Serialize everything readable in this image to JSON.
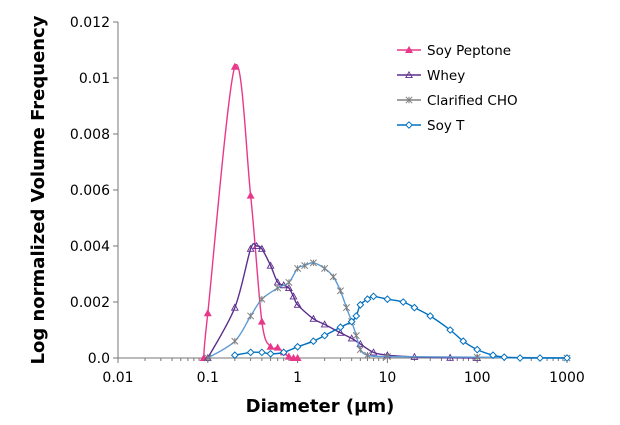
{
  "chart_data": {
    "type": "line",
    "xlabel": "Diameter (µm)",
    "ylabel": "Log normalized Volume Frequency",
    "xscale": "log",
    "xlim": [
      0.01,
      1000
    ],
    "ylim": [
      0,
      0.012
    ],
    "xticks": [
      "0.01",
      "0.1",
      "1",
      "10",
      "100",
      "1000"
    ],
    "yticks": [
      "0.0",
      "0.002",
      "0.004",
      "0.006",
      "0.008",
      "0.01",
      "0.012"
    ],
    "grid": false,
    "legend_position": "top-right",
    "series": [
      {
        "name": "Soy Peptone",
        "color": "#e8388a",
        "marker": "triangle-filled",
        "x": [
          0.09,
          0.1,
          0.2,
          0.3,
          0.4,
          0.5,
          0.6,
          0.7,
          0.8,
          0.9,
          1.0
        ],
        "y": [
          0,
          0.0016,
          0.0104,
          0.0058,
          0.0013,
          0.0004,
          0.00037,
          0.0002,
          5e-05,
          0,
          0
        ]
      },
      {
        "name": "Whey",
        "color": "#5b2d8e",
        "marker": "triangle-open",
        "x": [
          0.1,
          0.2,
          0.3,
          0.35,
          0.4,
          0.5,
          0.6,
          0.7,
          0.8,
          0.9,
          1.0,
          1.5,
          2,
          3,
          4,
          5,
          7,
          10,
          20,
          50,
          100
        ],
        "y": [
          0,
          0.0018,
          0.0039,
          0.004,
          0.0039,
          0.0033,
          0.0027,
          0.0026,
          0.0025,
          0.0022,
          0.0019,
          0.0014,
          0.0012,
          0.0009,
          0.0007,
          0.0005,
          0.0002,
          0.0001,
          4e-05,
          1e-05,
          0
        ]
      },
      {
        "name": "Clarified CHO",
        "color": "#5b9bd5",
        "marker_color": "#808080",
        "marker": "star",
        "x": [
          0.1,
          0.2,
          0.3,
          0.4,
          0.6,
          0.8,
          1.0,
          1.2,
          1.5,
          2,
          2.5,
          3,
          3.5,
          4,
          4.5,
          5,
          6,
          10,
          100,
          1000
        ],
        "y": [
          0,
          0.0006,
          0.0015,
          0.0021,
          0.0025,
          0.0027,
          0.0032,
          0.0033,
          0.0034,
          0.0032,
          0.0029,
          0.0024,
          0.0018,
          0.0013,
          0.0008,
          0.0003,
          0.0001,
          5e-05,
          3e-05,
          0
        ]
      },
      {
        "name": "Soy T",
        "color": "#0070c0",
        "marker": "diamond-open",
        "x": [
          0.2,
          0.3,
          0.4,
          0.5,
          0.7,
          1,
          1.5,
          2,
          3,
          4,
          4.5,
          5,
          6,
          7,
          10,
          15,
          20,
          30,
          50,
          70,
          100,
          150,
          200,
          300,
          500,
          1000
        ],
        "y": [
          0.0001,
          0.0002,
          0.0002,
          0.00015,
          0.0002,
          0.0004,
          0.0006,
          0.0008,
          0.0011,
          0.0013,
          0.0015,
          0.0019,
          0.0021,
          0.0022,
          0.0021,
          0.002,
          0.0018,
          0.0015,
          0.001,
          0.0006,
          0.0003,
          0.0001,
          3e-05,
          0,
          0,
          0
        ]
      }
    ]
  }
}
